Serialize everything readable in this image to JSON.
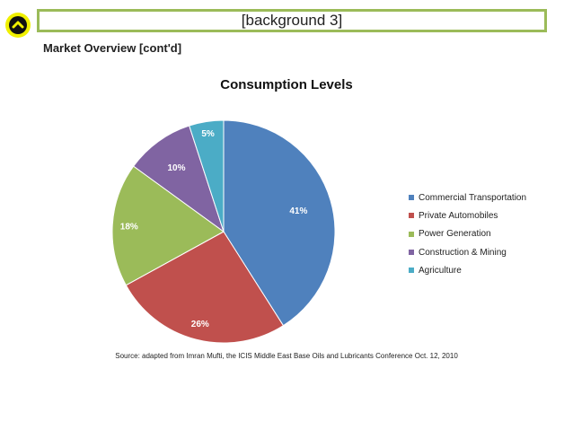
{
  "header": {
    "title": "[background 3]"
  },
  "nav": {
    "icon": "chevron-up-icon"
  },
  "subtitle": "Market Overview [cont'd]",
  "chart_data": {
    "type": "pie",
    "title": "Consumption Levels",
    "slices": [
      {
        "label": "Commercial Transportation",
        "value": 41,
        "display": "41%",
        "color": "#4f81bd"
      },
      {
        "label": "Private Automobiles",
        "value": 26,
        "display": "26%",
        "color": "#c0504d"
      },
      {
        "label": "Power Generation",
        "value": 18,
        "display": "18%",
        "color": "#9bbb59"
      },
      {
        "label": "Construction & Mining",
        "value": 10,
        "display": "10%",
        "color": "#8064a2"
      },
      {
        "label": "Agriculture",
        "value": 5,
        "display": "5%",
        "color": "#4bacc6"
      }
    ],
    "legend_position": "right"
  },
  "source": "Source: adapted from Imran Mufti, the ICIS Middle East Base Oils and Lubricants Conference Oct. 12, 2010"
}
